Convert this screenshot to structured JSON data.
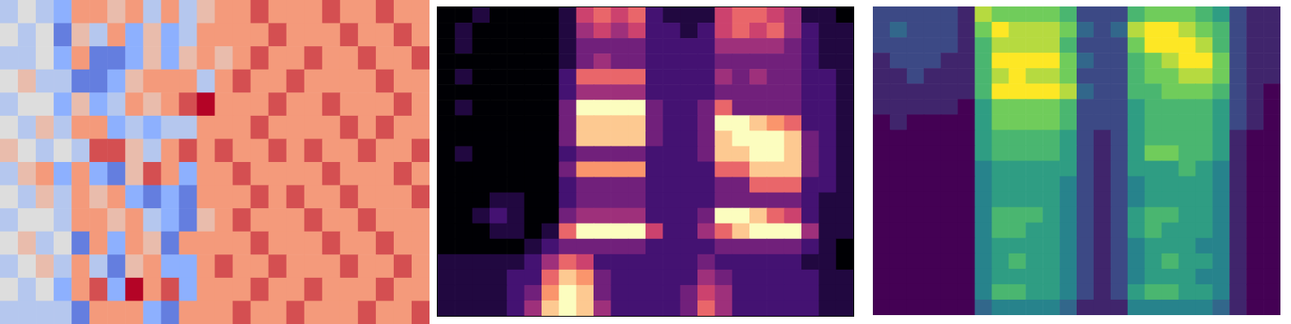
{
  "chart_data": [
    {
      "type": "heatmap",
      "color": "coolwarm",
      "tick_labels": false,
      "color_range": [
        -4,
        4
      ],
      "cells": [
        [
          -1,
          0,
          -1,
          -2,
          2,
          2,
          1,
          2,
          -1,
          2,
          -1,
          1,
          2,
          2,
          3,
          2,
          2,
          2,
          3,
          2,
          2,
          3,
          2,
          2
        ],
        [
          0,
          -1,
          0,
          -3,
          1,
          -1,
          2,
          -2,
          1,
          -2,
          -1,
          2,
          2,
          2,
          2,
          3,
          2,
          2,
          2,
          3,
          2,
          2,
          3,
          2
        ],
        [
          -1,
          -1,
          0,
          -2,
          2,
          -3,
          -3,
          -2,
          1,
          -2,
          1,
          2,
          1,
          2,
          3,
          2,
          2,
          3,
          2,
          2,
          3,
          2,
          2,
          3
        ],
        [
          0,
          1,
          -1,
          -1,
          -3,
          -3,
          -2,
          1,
          2,
          2,
          2,
          -1,
          2,
          3,
          2,
          2,
          3,
          2,
          2,
          2,
          2,
          3,
          2,
          2
        ],
        [
          -1,
          0,
          0,
          -2,
          1,
          -2,
          -1,
          2,
          1,
          2,
          3,
          4,
          2,
          2,
          2,
          3,
          2,
          2,
          3,
          2,
          2,
          2,
          3,
          2
        ],
        [
          0,
          -1,
          1,
          -1,
          2,
          2,
          -2,
          -1,
          -2,
          -1,
          -1,
          2,
          2,
          2,
          3,
          2,
          2,
          2,
          2,
          3,
          2,
          3,
          2,
          2
        ],
        [
          1,
          0,
          -1,
          0,
          -1,
          3,
          3,
          1,
          -1,
          2,
          3,
          2,
          3,
          2,
          2,
          3,
          2,
          3,
          2,
          2,
          3,
          2,
          2,
          3
        ],
        [
          -1,
          1,
          2,
          -2,
          2,
          -2,
          -3,
          1,
          3,
          2,
          -2,
          2,
          2,
          3,
          2,
          2,
          2,
          2,
          3,
          2,
          2,
          2,
          3,
          2
        ],
        [
          0,
          -1,
          1,
          -1,
          2,
          1,
          2,
          -2,
          -3,
          -2,
          -3,
          2,
          2,
          2,
          3,
          2,
          3,
          2,
          2,
          3,
          2,
          2,
          2,
          3
        ],
        [
          -1,
          0,
          0,
          -1,
          2,
          2,
          1,
          2,
          -1,
          -2,
          -3,
          1,
          2,
          3,
          2,
          2,
          2,
          3,
          2,
          2,
          3,
          2,
          2,
          2
        ],
        [
          0,
          1,
          -1,
          0,
          -3,
          2,
          -2,
          2,
          1,
          -3,
          2,
          2,
          2,
          2,
          3,
          2,
          2,
          2,
          3,
          2,
          2,
          3,
          2,
          2
        ],
        [
          -1,
          0,
          1,
          -1,
          2,
          -1,
          -3,
          1,
          2,
          -2,
          -2,
          2,
          3,
          2,
          2,
          3,
          2,
          2,
          2,
          3,
          2,
          2,
          3,
          2
        ],
        [
          0,
          -1,
          0,
          -2,
          2,
          3,
          -2,
          4,
          2,
          3,
          -2,
          2,
          2,
          2,
          3,
          2,
          2,
          3,
          2,
          2,
          2,
          3,
          2,
          2
        ],
        [
          -1,
          -1,
          -1,
          -1,
          -3,
          2,
          2,
          2,
          -2,
          -3,
          2,
          2,
          2,
          3,
          2,
          2,
          3,
          2,
          2,
          2,
          3,
          2,
          2,
          3
        ]
      ]
    },
    {
      "type": "heatmap",
      "color": "magma",
      "tick_labels": false,
      "color_range": [
        0,
        9
      ],
      "cells": [
        [
          0,
          0,
          1,
          0,
          0,
          0,
          0,
          1,
          5,
          6,
          5,
          6,
          2,
          1,
          1,
          1,
          5,
          6,
          6,
          5,
          4,
          1,
          1,
          0
        ],
        [
          0,
          1,
          0,
          0,
          0,
          0,
          0,
          1,
          4,
          5,
          4,
          5,
          2,
          2,
          1,
          2,
          5,
          6,
          5,
          6,
          4,
          2,
          1,
          1
        ],
        [
          0,
          1,
          0,
          0,
          0,
          0,
          0,
          1,
          3,
          3,
          3,
          3,
          2,
          2,
          2,
          2,
          4,
          4,
          4,
          4,
          3,
          2,
          1,
          1
        ],
        [
          0,
          0,
          0,
          0,
          0,
          0,
          0,
          1,
          3,
          4,
          3,
          3,
          2,
          2,
          2,
          2,
          3,
          3,
          3,
          3,
          3,
          2,
          1,
          1
        ],
        [
          0,
          1,
          0,
          0,
          0,
          0,
          0,
          2,
          6,
          6,
          6,
          6,
          2,
          2,
          2,
          2,
          4,
          3,
          4,
          3,
          3,
          2,
          2,
          1
        ],
        [
          0,
          0,
          0,
          0,
          0,
          0,
          0,
          2,
          4,
          4,
          4,
          4,
          2,
          2,
          2,
          2,
          3,
          3,
          3,
          3,
          3,
          2,
          2,
          1
        ],
        [
          0,
          1,
          0,
          0,
          0,
          0,
          0,
          3,
          9,
          9,
          9,
          9,
          3,
          2,
          2,
          3,
          6,
          3,
          3,
          3,
          3,
          2,
          2,
          1
        ],
        [
          0,
          0,
          0,
          0,
          0,
          0,
          0,
          3,
          8,
          8,
          8,
          8,
          3,
          2,
          2,
          3,
          9,
          9,
          8,
          7,
          6,
          2,
          2,
          1
        ],
        [
          0,
          0,
          0,
          0,
          0,
          0,
          0,
          3,
          8,
          8,
          8,
          8,
          3,
          2,
          2,
          3,
          8,
          9,
          9,
          9,
          8,
          3,
          2,
          1
        ],
        [
          0,
          1,
          0,
          0,
          0,
          0,
          0,
          2,
          3,
          3,
          3,
          3,
          2,
          2,
          2,
          3,
          8,
          8,
          9,
          9,
          8,
          3,
          2,
          1
        ],
        [
          0,
          0,
          0,
          0,
          0,
          0,
          0,
          3,
          7,
          7,
          7,
          7,
          2,
          2,
          2,
          2,
          6,
          6,
          8,
          8,
          8,
          3,
          2,
          1
        ],
        [
          0,
          0,
          0,
          0,
          0,
          0,
          0,
          2,
          3,
          3,
          3,
          3,
          2,
          2,
          2,
          2,
          3,
          3,
          6,
          6,
          6,
          2,
          2,
          1
        ],
        [
          0,
          0,
          0,
          1,
          1,
          0,
          0,
          2,
          3,
          3,
          3,
          3,
          2,
          2,
          2,
          2,
          3,
          3,
          3,
          3,
          3,
          2,
          1,
          1
        ],
        [
          0,
          0,
          1,
          2,
          1,
          0,
          0,
          3,
          4,
          4,
          4,
          4,
          2,
          2,
          2,
          3,
          9,
          9,
          8,
          6,
          5,
          2,
          1,
          1
        ],
        [
          0,
          0,
          0,
          1,
          1,
          0,
          1,
          6,
          9,
          9,
          9,
          9,
          5,
          2,
          2,
          4,
          6,
          8,
          9,
          9,
          9,
          4,
          1,
          1
        ],
        [
          0,
          0,
          0,
          0,
          0,
          1,
          2,
          3,
          3,
          3,
          3,
          3,
          2,
          2,
          2,
          2,
          3,
          3,
          3,
          3,
          3,
          2,
          1,
          0
        ],
        [
          1,
          1,
          1,
          1,
          1,
          2,
          4,
          6,
          5,
          2,
          2,
          2,
          2,
          2,
          2,
          3,
          2,
          2,
          2,
          2,
          2,
          1,
          1,
          0
        ],
        [
          1,
          1,
          1,
          1,
          2,
          2,
          6,
          8,
          7,
          3,
          2,
          2,
          2,
          2,
          2,
          4,
          3,
          2,
          2,
          2,
          2,
          2,
          1,
          1
        ],
        [
          1,
          1,
          1,
          1,
          2,
          3,
          7,
          9,
          8,
          3,
          2,
          2,
          2,
          2,
          3,
          5,
          4,
          2,
          2,
          2,
          2,
          2,
          1,
          1
        ],
        [
          1,
          1,
          1,
          1,
          2,
          4,
          8,
          9,
          8,
          4,
          2,
          2,
          2,
          2,
          3,
          6,
          4,
          2,
          2,
          2,
          2,
          2,
          1,
          1
        ]
      ]
    },
    {
      "type": "heatmap",
      "color": "viridis",
      "tick_labels": false,
      "color_range": [
        0,
        9
      ],
      "cells": [
        [
          2,
          2,
          2,
          2,
          2,
          1,
          8,
          7,
          7,
          7,
          7,
          6,
          2,
          2,
          2,
          6,
          7,
          7,
          7,
          6,
          5,
          2,
          1,
          1
        ],
        [
          2,
          3,
          2,
          2,
          2,
          1,
          7,
          9,
          8,
          8,
          8,
          7,
          3,
          2,
          3,
          8,
          9,
          9,
          8,
          7,
          6,
          2,
          1,
          1
        ],
        [
          2,
          2,
          2,
          2,
          2,
          1,
          6,
          8,
          8,
          8,
          8,
          6,
          2,
          2,
          2,
          7,
          9,
          9,
          9,
          8,
          6,
          2,
          1,
          1
        ],
        [
          1,
          2,
          2,
          2,
          1,
          1,
          6,
          9,
          9,
          9,
          9,
          7,
          3,
          2,
          2,
          6,
          7,
          8,
          9,
          9,
          7,
          2,
          1,
          1
        ],
        [
          1,
          1,
          2,
          1,
          1,
          1,
          6,
          8,
          9,
          8,
          8,
          7,
          2,
          2,
          2,
          6,
          7,
          7,
          8,
          8,
          7,
          2,
          1,
          1
        ],
        [
          1,
          1,
          1,
          1,
          1,
          1,
          6,
          9,
          9,
          9,
          9,
          8,
          3,
          2,
          2,
          6,
          6,
          7,
          7,
          7,
          6,
          2,
          1,
          0
        ],
        [
          1,
          1,
          1,
          1,
          1,
          0,
          5,
          7,
          7,
          7,
          7,
          6,
          2,
          2,
          2,
          5,
          6,
          6,
          6,
          6,
          5,
          2,
          1,
          0
        ],
        [
          0,
          1,
          0,
          0,
          0,
          0,
          5,
          7,
          7,
          7,
          7,
          6,
          2,
          2,
          2,
          5,
          6,
          6,
          6,
          6,
          5,
          2,
          1,
          0
        ],
        [
          0,
          0,
          0,
          0,
          0,
          0,
          5,
          6,
          6,
          6,
          6,
          5,
          2,
          1,
          2,
          5,
          6,
          6,
          6,
          6,
          5,
          1,
          0,
          0
        ],
        [
          0,
          0,
          0,
          0,
          0,
          0,
          5,
          6,
          6,
          6,
          6,
          5,
          2,
          1,
          2,
          5,
          7,
          7,
          6,
          6,
          5,
          1,
          0,
          0
        ],
        [
          0,
          0,
          0,
          0,
          0,
          0,
          4,
          5,
          5,
          5,
          5,
          5,
          2,
          1,
          2,
          5,
          5,
          5,
          6,
          5,
          4,
          1,
          0,
          0
        ],
        [
          0,
          0,
          0,
          0,
          0,
          0,
          4,
          5,
          5,
          5,
          5,
          4,
          2,
          1,
          2,
          4,
          5,
          5,
          5,
          5,
          4,
          1,
          0,
          0
        ],
        [
          0,
          0,
          0,
          0,
          0,
          0,
          4,
          5,
          5,
          5,
          5,
          4,
          2,
          1,
          2,
          4,
          5,
          5,
          5,
          5,
          4,
          1,
          0,
          0
        ],
        [
          0,
          0,
          0,
          0,
          0,
          0,
          4,
          6,
          6,
          6,
          5,
          4,
          2,
          1,
          2,
          5,
          6,
          6,
          5,
          5,
          4,
          1,
          0,
          0
        ],
        [
          0,
          0,
          0,
          0,
          0,
          0,
          4,
          6,
          6,
          5,
          5,
          4,
          2,
          1,
          2,
          5,
          6,
          5,
          5,
          5,
          4,
          1,
          0,
          0
        ],
        [
          0,
          0,
          0,
          0,
          0,
          0,
          4,
          5,
          5,
          5,
          5,
          4,
          2,
          1,
          2,
          4,
          5,
          5,
          5,
          4,
          4,
          1,
          0,
          0
        ],
        [
          0,
          0,
          0,
          0,
          0,
          0,
          4,
          5,
          6,
          5,
          5,
          4,
          2,
          1,
          2,
          4,
          5,
          6,
          5,
          5,
          4,
          1,
          0,
          0
        ],
        [
          0,
          0,
          0,
          0,
          0,
          0,
          4,
          5,
          5,
          5,
          5,
          4,
          2,
          1,
          2,
          4,
          5,
          5,
          5,
          4,
          4,
          1,
          0,
          0
        ],
        [
          0,
          0,
          0,
          0,
          0,
          0,
          4,
          6,
          6,
          5,
          5,
          4,
          2,
          1,
          2,
          5,
          6,
          6,
          5,
          5,
          4,
          1,
          0,
          0
        ],
        [
          0,
          0,
          0,
          0,
          0,
          0,
          3,
          4,
          4,
          4,
          4,
          3,
          1,
          1,
          1,
          4,
          4,
          4,
          4,
          4,
          3,
          1,
          0,
          0
        ]
      ]
    }
  ]
}
